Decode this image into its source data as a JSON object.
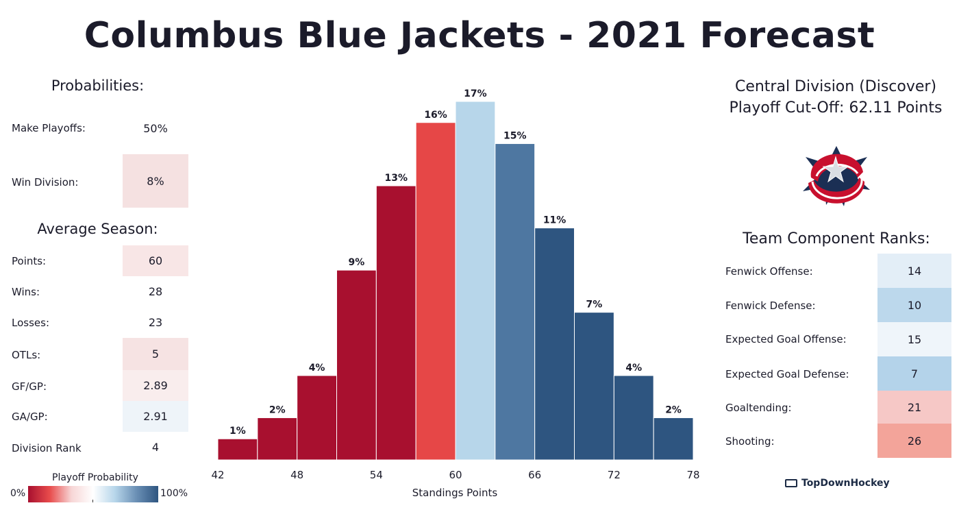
{
  "title": "Columbus Blue Jackets - 2021 Forecast",
  "probabilities": {
    "heading": "Probabilities:",
    "rows": [
      {
        "label": "Make Playoffs:",
        "value": "50%",
        "color": "#ffffff"
      },
      {
        "label": "Win Division:",
        "value": "8%",
        "color": "#f5e1e1"
      }
    ]
  },
  "average_season": {
    "heading": "Average Season:",
    "rows": [
      {
        "label": "Points:",
        "value": "60",
        "color": "#f8e6e6"
      },
      {
        "label": "Wins:",
        "value": "28",
        "color": "#ffffff"
      },
      {
        "label": "Losses:",
        "value": "23",
        "color": "#ffffff"
      },
      {
        "label": "OTLs:",
        "value": "5",
        "color": "#f6e3e3"
      },
      {
        "label": "GF/GP:",
        "value": "2.89",
        "color": "#f9eded"
      },
      {
        "label": "GA/GP:",
        "value": "2.91",
        "color": "#eef4f9"
      },
      {
        "label": "Division Rank",
        "value": "4",
        "color": "#ffffff"
      }
    ]
  },
  "legend": {
    "title": "Playoff Probability",
    "min_label": "0%",
    "max_label": "100%",
    "colors": [
      "#a8102f",
      "#e84c4c",
      "#f7d6d6",
      "#ffffff",
      "#b7d6ea",
      "#6a8fb5",
      "#2e5580"
    ]
  },
  "division": {
    "name": "Central Division (Discover)",
    "cutoff": "Playoff Cut-Off: 62.11 Points"
  },
  "logo_icon": "blue-jackets-logo-icon",
  "team_ranks": {
    "heading": "Team Component Ranks:",
    "rows": [
      {
        "label": "Fenwick Offense:",
        "value": "14",
        "color": "#e3eef7"
      },
      {
        "label": "Fenwick Defense:",
        "value": "10",
        "color": "#bcd8ec"
      },
      {
        "label": "Expected Goal Offense:",
        "value": "15",
        "color": "#eff5fa"
      },
      {
        "label": "Expected Goal Defense:",
        "value": "7",
        "color": "#b4d3ea"
      },
      {
        "label": "Goaltending:",
        "value": "21",
        "color": "#f6c8c6"
      },
      {
        "label": "Shooting:",
        "value": "26",
        "color": "#f3a49a"
      }
    ]
  },
  "brand": "TopDownHockey",
  "chart_data": {
    "type": "bar",
    "title": "",
    "xlabel": "Standings Points",
    "ylabel": "",
    "x_ticks": [
      42,
      48,
      54,
      60,
      66,
      72,
      78
    ],
    "xlim": [
      42,
      78
    ],
    "ylim": [
      0,
      17
    ],
    "bin_width": 3,
    "bins": [
      {
        "start": 42,
        "value": 1,
        "label": "1%",
        "color": "#a8102f"
      },
      {
        "start": 45,
        "value": 2,
        "label": "2%",
        "color": "#a8102f"
      },
      {
        "start": 48,
        "value": 4,
        "label": "4%",
        "color": "#a8102f"
      },
      {
        "start": 51,
        "value": 9,
        "label": "9%",
        "color": "#a8102f"
      },
      {
        "start": 54,
        "value": 13,
        "label": "13%",
        "color": "#a8102f"
      },
      {
        "start": 57,
        "value": 16,
        "label": "16%",
        "color": "#e64747"
      },
      {
        "start": 60,
        "value": 17,
        "label": "17%",
        "color": "#b7d6ea"
      },
      {
        "start": 63,
        "value": 15,
        "label": "15%",
        "color": "#4e77a1"
      },
      {
        "start": 66,
        "value": 11,
        "label": "11%",
        "color": "#2e5580"
      },
      {
        "start": 69,
        "value": 7,
        "label": "7%",
        "color": "#2e5580"
      },
      {
        "start": 72,
        "value": 4,
        "label": "4%",
        "color": "#2e5580"
      },
      {
        "start": 75,
        "value": 2,
        "label": "2%",
        "color": "#2e5580"
      }
    ]
  }
}
